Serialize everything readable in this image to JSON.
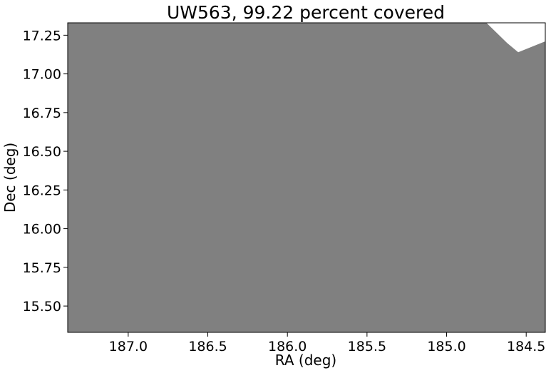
{
  "chart_data": {
    "type": "area",
    "title": "UW563, 99.22 percent covered",
    "xlabel": "RA (deg)",
    "ylabel": "Dec (deg)",
    "xlim": [
      187.38,
      184.38
    ],
    "ylim": [
      15.33,
      17.33
    ],
    "x_inverted": true,
    "grid": false,
    "x_ticks": [
      187.0,
      186.5,
      186.0,
      185.5,
      185.0,
      184.5
    ],
    "x_tick_labels": [
      "187.0",
      "186.5",
      "186.0",
      "185.5",
      "185.0",
      "184.5"
    ],
    "y_ticks": [
      15.5,
      15.75,
      16.0,
      16.25,
      16.5,
      16.75,
      17.0,
      17.25
    ],
    "y_tick_labels": [
      "15.50",
      "15.75",
      "16.00",
      "16.25",
      "16.50",
      "16.75",
      "17.00",
      "17.25"
    ],
    "coverage_percent": 99.22,
    "fill_color": "#808080",
    "uncovered_region": {
      "boundary": [
        {
          "ra": 184.75,
          "dec": 17.33
        },
        {
          "ra": 184.62,
          "dec": 17.2
        },
        {
          "ra": 184.55,
          "dec": 17.14
        },
        {
          "ra": 184.38,
          "dec": 17.21
        }
      ]
    }
  }
}
